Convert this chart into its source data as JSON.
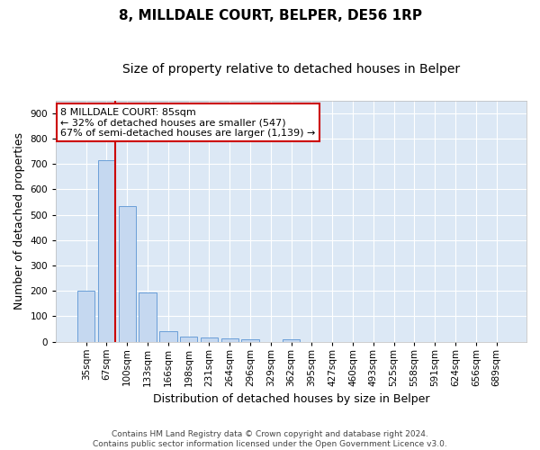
{
  "title": "8, MILLDALE COURT, BELPER, DE56 1RP",
  "subtitle": "Size of property relative to detached houses in Belper",
  "xlabel": "Distribution of detached houses by size in Belper",
  "ylabel": "Number of detached properties",
  "footer_line1": "Contains HM Land Registry data © Crown copyright and database right 2024.",
  "footer_line2": "Contains public sector information licensed under the Open Government Licence v3.0.",
  "bar_labels": [
    "35sqm",
    "67sqm",
    "100sqm",
    "133sqm",
    "166sqm",
    "198sqm",
    "231sqm",
    "264sqm",
    "296sqm",
    "329sqm",
    "362sqm",
    "395sqm",
    "427sqm",
    "460sqm",
    "493sqm",
    "525sqm",
    "558sqm",
    "591sqm",
    "624sqm",
    "656sqm",
    "689sqm"
  ],
  "bar_values": [
    200,
    713,
    533,
    193,
    42,
    20,
    15,
    13,
    10,
    0,
    8,
    0,
    0,
    0,
    0,
    0,
    0,
    0,
    0,
    0,
    0
  ],
  "bar_color": "#c5d8f0",
  "bar_edge_color": "#6a9fd8",
  "annotation_line1": "8 MILLDALE COURT: 85sqm",
  "annotation_line2": "← 32% of detached houses are smaller (547)",
  "annotation_line3": "67% of semi-detached houses are larger (1,139) →",
  "annotation_box_color": "#ffffff",
  "annotation_box_edge_color": "#cc0000",
  "vline_color": "#cc0000",
  "vline_x_index": 1,
  "ylim": [
    0,
    950
  ],
  "yticks": [
    0,
    100,
    200,
    300,
    400,
    500,
    600,
    700,
    800,
    900
  ],
  "background_color": "#dce8f5",
  "grid_color": "#ffffff",
  "title_fontsize": 11,
  "subtitle_fontsize": 10,
  "tick_fontsize": 7.5,
  "ylabel_fontsize": 9,
  "xlabel_fontsize": 9,
  "footer_fontsize": 6.5
}
